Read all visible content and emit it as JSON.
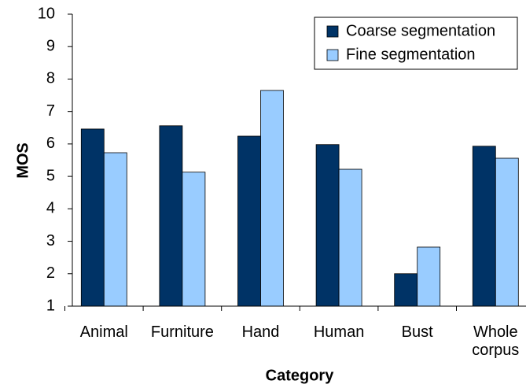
{
  "chart_data": {
    "type": "bar",
    "categories": [
      "Animal",
      "Furniture",
      "Hand",
      "Human",
      "Bust",
      "Whole corpus"
    ],
    "series": [
      {
        "name": "Coarse segmentation",
        "color": "#003366",
        "values": [
          6.46,
          6.56,
          6.24,
          5.98,
          2.0,
          5.93
        ]
      },
      {
        "name": "Fine segmentation",
        "color": "#99ccff",
        "values": [
          5.73,
          5.13,
          7.65,
          5.22,
          2.82,
          5.56
        ]
      }
    ],
    "x_label": "Category",
    "y_label": "MOS",
    "ylim": [
      1,
      10
    ],
    "yticks": [
      1,
      2,
      3,
      4,
      5,
      6,
      7,
      8,
      9,
      10
    ],
    "legend": "top-right"
  }
}
